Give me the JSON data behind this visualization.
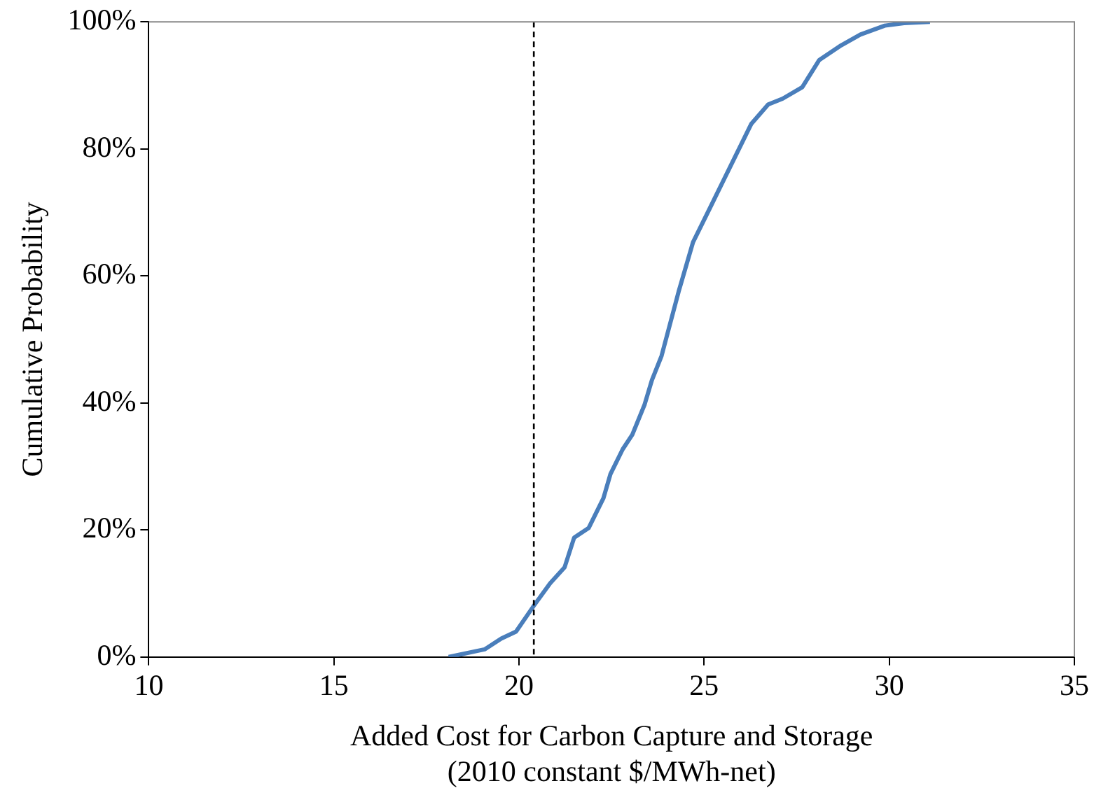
{
  "chart_data": {
    "type": "line",
    "xlabel": "Added Cost for Carbon Capture and Storage\n(2010 constant $/MWh-net)",
    "ylabel": "Cumulative Probability",
    "series": [
      {
        "color": "#4a7ebb",
        "x": [
          18.1,
          19.07,
          19.52,
          19.92,
          20.38,
          20.84,
          21.23,
          21.49,
          21.88,
          22.28,
          22.47,
          22.8,
          23.06,
          23.39,
          23.59,
          23.85,
          24.31,
          24.7,
          25.09,
          25.68,
          26.27,
          26.73,
          27.12,
          27.65,
          28.11,
          28.7,
          29.22,
          29.88,
          30.4,
          31.1
        ],
        "values": [
          0,
          1.2,
          2.9,
          4,
          7.9,
          11.6,
          14.1,
          18.8,
          20.3,
          25,
          28.8,
          32.7,
          35,
          39.7,
          43.6,
          47.4,
          57.5,
          65.3,
          69.9,
          76.9,
          83.9,
          87,
          87.9,
          89.7,
          94,
          96.3,
          98,
          99.4,
          99.8,
          100
        ]
      }
    ],
    "xlim": [
      10,
      35
    ],
    "xticks": [
      10,
      15,
      20,
      25,
      30,
      35
    ],
    "ylim": [
      0,
      100
    ],
    "yticks": [
      {
        "value": 0,
        "label": "0%"
      },
      {
        "value": 20,
        "label": "20%"
      },
      {
        "value": 40,
        "label": "40%"
      },
      {
        "value": 60,
        "label": "60%"
      },
      {
        "value": 80,
        "label": "80%"
      },
      {
        "value": 100,
        "label": "100%"
      }
    ],
    "ref_lines": [
      {
        "axis": "x",
        "value": 20.4,
        "color": "#000000",
        "line_style": "dashed"
      }
    ],
    "grid": false,
    "legend": false,
    "marker": "none",
    "line_style": "solid"
  }
}
